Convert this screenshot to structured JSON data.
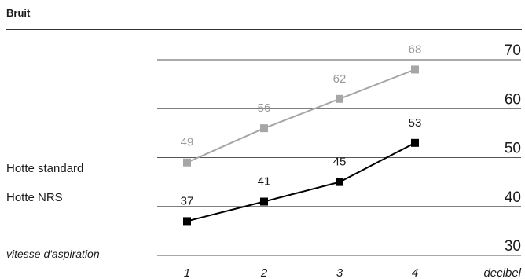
{
  "chart_data": {
    "type": "line",
    "title": "Bruit",
    "x_axis_label": "vitesse d'aspiration",
    "y_unit_label": "decibel",
    "categories": [
      "1",
      "2",
      "3",
      "4"
    ],
    "y_ticks": [
      70,
      60,
      50,
      40,
      30
    ],
    "ylim": [
      30,
      70
    ],
    "grid": true,
    "series": [
      {
        "name": "Hotte standard",
        "values": [
          49,
          56,
          62,
          68
        ],
        "color": "#a6a6a6",
        "marker": "square"
      },
      {
        "name": "Hotte NRS",
        "values": [
          37,
          41,
          45,
          53
        ],
        "color": "#000000",
        "marker": "square"
      }
    ]
  }
}
